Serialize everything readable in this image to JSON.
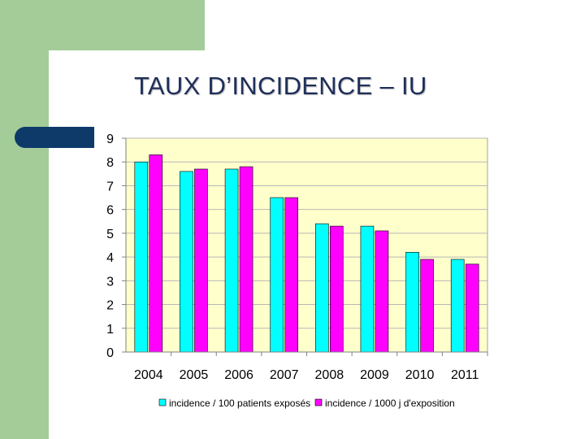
{
  "slide": {
    "title": "TAUX D’INCIDENCE – IU"
  },
  "colors": {
    "plot_background": "#ffffcc",
    "series1": "#00ffff",
    "series2": "#ff00ff",
    "gridline": "#b8b8b8",
    "green_decor": "#a3cc99",
    "navy_decor": "#0e3a6a"
  },
  "chart_data": {
    "type": "bar",
    "title": "",
    "xlabel": "",
    "ylabel": "",
    "ylim": [
      0,
      9
    ],
    "yticks": [
      "0",
      "1",
      "2",
      "3",
      "4",
      "5",
      "6",
      "7",
      "8",
      "9"
    ],
    "grid": true,
    "legend_position": "bottom",
    "categories": [
      "2004",
      "2005",
      "2006",
      "2007",
      "2008",
      "2009",
      "2010",
      "2011"
    ],
    "series": [
      {
        "name": "incidence / 100 patients exposés",
        "values": [
          8.0,
          7.6,
          7.7,
          6.5,
          5.4,
          5.3,
          4.2,
          3.9
        ]
      },
      {
        "name": "incidence / 1000 j d'exposition",
        "values": [
          8.3,
          7.7,
          7.8,
          6.5,
          5.3,
          5.1,
          3.9,
          3.7
        ]
      }
    ]
  }
}
